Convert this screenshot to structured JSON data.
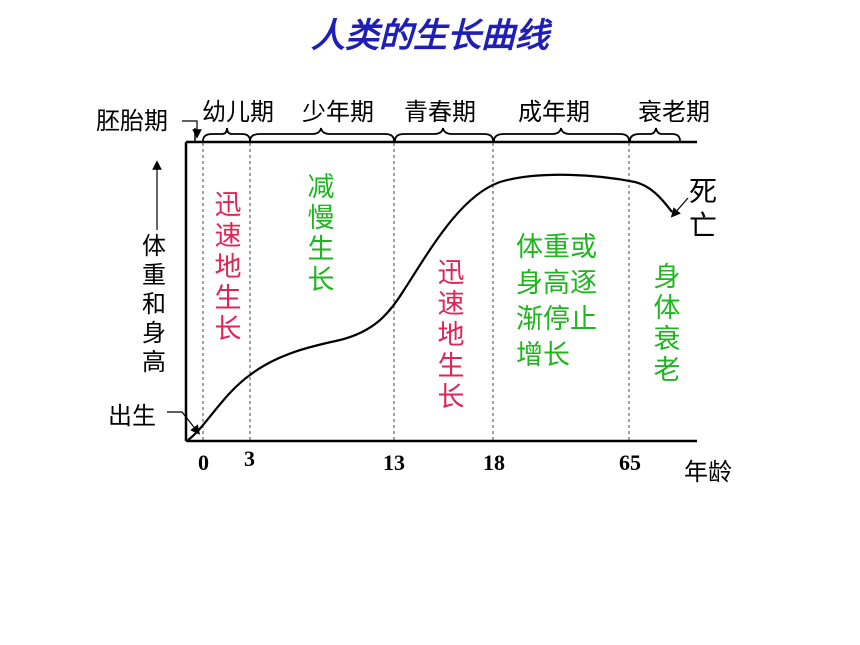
{
  "title": "人类的生长曲线",
  "stages": {
    "embryo": "胚胎期",
    "infant": "幼儿期",
    "youth": "少年期",
    "adolescence": "青春期",
    "adult": "成年期",
    "elderly": "衰老期"
  },
  "y_axis_label": "体重和身高",
  "birth_label": "出生",
  "death_label": "死亡",
  "x_axis_label": "年龄",
  "ticks": [
    "0",
    "3",
    "13",
    "18",
    "65"
  ],
  "phase_notes": {
    "rapid_1": "迅速地生长",
    "slow": "减慢生长",
    "rapid_2": "迅速地生长",
    "stop": "体重或身高逐渐停止增长",
    "decline": "身体衰老"
  },
  "colors": {
    "title": "#1f1fb8",
    "rapid": "#e02457",
    "slow": "#1fb51f"
  }
}
